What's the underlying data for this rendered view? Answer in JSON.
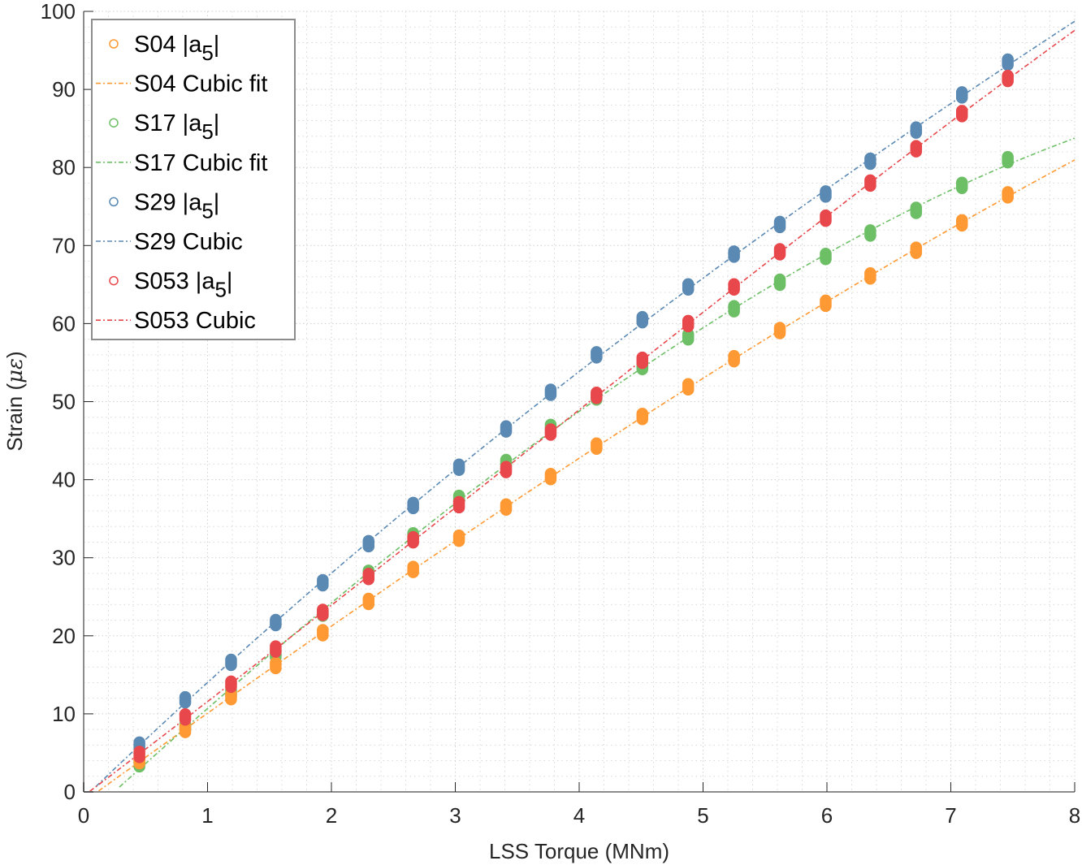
{
  "chart_data": {
    "type": "scatter",
    "title": "",
    "xlabel": "LSS Torque (MNm)",
    "ylabel_main": "Strain (",
    "ylabel_symbol": "με",
    "ylabel_close": ")",
    "xlim": [
      0,
      8
    ],
    "ylim": [
      0,
      100
    ],
    "x_ticks": [
      0,
      1,
      2,
      3,
      4,
      5,
      6,
      7,
      8
    ],
    "x_tick_labels": [
      "0",
      "1",
      "2",
      "3",
      "4",
      "5",
      "6",
      "7",
      "8"
    ],
    "y_ticks": [
      0,
      10,
      20,
      30,
      40,
      50,
      60,
      70,
      80,
      90,
      100
    ],
    "y_tick_labels": [
      "0",
      "10",
      "20",
      "30",
      "40",
      "50",
      "60",
      "70",
      "80",
      "90",
      "100"
    ],
    "grid": true,
    "minor_grid": true,
    "legend_position": "top-left",
    "x": [
      0.45,
      0.82,
      1.19,
      1.55,
      1.93,
      2.3,
      2.66,
      3.03,
      3.41,
      3.77,
      4.14,
      4.51,
      4.88,
      5.25,
      5.62,
      5.99,
      6.35,
      6.72,
      7.09,
      7.46
    ],
    "series": [
      {
        "name": "S04 |a5|",
        "legend_main": "S04 |a",
        "legend_sub": "5",
        "legend_tail": "|",
        "kind": "markers",
        "color": "#FF9933",
        "values": [
          4.0,
          8.0,
          12.2,
          16.2,
          20.4,
          24.4,
          28.5,
          32.5,
          36.5,
          40.4,
          44.3,
          48.1,
          51.9,
          55.5,
          59.1,
          62.6,
          66.1,
          69.4,
          72.9,
          76.5
        ]
      },
      {
        "name": "S04 Cubic fit",
        "legend_main": "S04 Cubic fit",
        "kind": "fit",
        "color": "#FF9933",
        "fit_of": 0,
        "x_range": [
          0.12,
          8.0
        ]
      },
      {
        "name": "S17 |a5|",
        "legend_main": "S17 |a",
        "legend_sub": "5",
        "legend_tail": "|",
        "kind": "markers",
        "color": "#6DBF66",
        "values": [
          3.6,
          8.3,
          12.7,
          17.6,
          22.9,
          28.0,
          32.8,
          37.6,
          42.2,
          46.7,
          50.6,
          54.5,
          58.3,
          61.9,
          65.3,
          68.6,
          71.6,
          74.5,
          77.7,
          81.0
        ]
      },
      {
        "name": "S17 Cubic fit",
        "legend_main": "S17 Cubic fit",
        "kind": "fit",
        "color": "#6DBF66",
        "fit_of": 2,
        "x_range": [
          0.24,
          8.0
        ]
      },
      {
        "name": "S29 |a5|",
        "legend_main": "S29 |a",
        "legend_sub": "5",
        "legend_tail": "|",
        "kind": "markers",
        "color": "#5A89B3",
        "values": [
          6.0,
          11.8,
          16.6,
          21.7,
          26.8,
          31.8,
          36.7,
          41.6,
          46.5,
          51.2,
          56.0,
          60.5,
          64.7,
          68.9,
          72.7,
          76.6,
          80.8,
          84.8,
          89.3,
          93.5
        ]
      },
      {
        "name": "S29 Cubic",
        "legend_main": "S29 Cubic",
        "kind": "fit",
        "color": "#5A89B3",
        "fit_of": 4,
        "x_range": [
          0.05,
          8.0
        ]
      },
      {
        "name": "S053 |a5|",
        "legend_main": "S053 |a",
        "legend_sub": "5",
        "legend_tail": "|",
        "kind": "markers",
        "color": "#E8474B",
        "values": [
          4.8,
          9.6,
          13.8,
          18.3,
          23.0,
          27.6,
          32.3,
          36.8,
          41.3,
          46.1,
          50.8,
          55.3,
          60.0,
          64.7,
          69.2,
          73.5,
          78.0,
          82.4,
          86.9,
          91.4
        ]
      },
      {
        "name": "S053 Cubic",
        "legend_main": "S053 Cubic",
        "kind": "fit",
        "color": "#E8474B",
        "fit_of": 6,
        "x_range": [
          0.05,
          8.0
        ]
      }
    ]
  }
}
